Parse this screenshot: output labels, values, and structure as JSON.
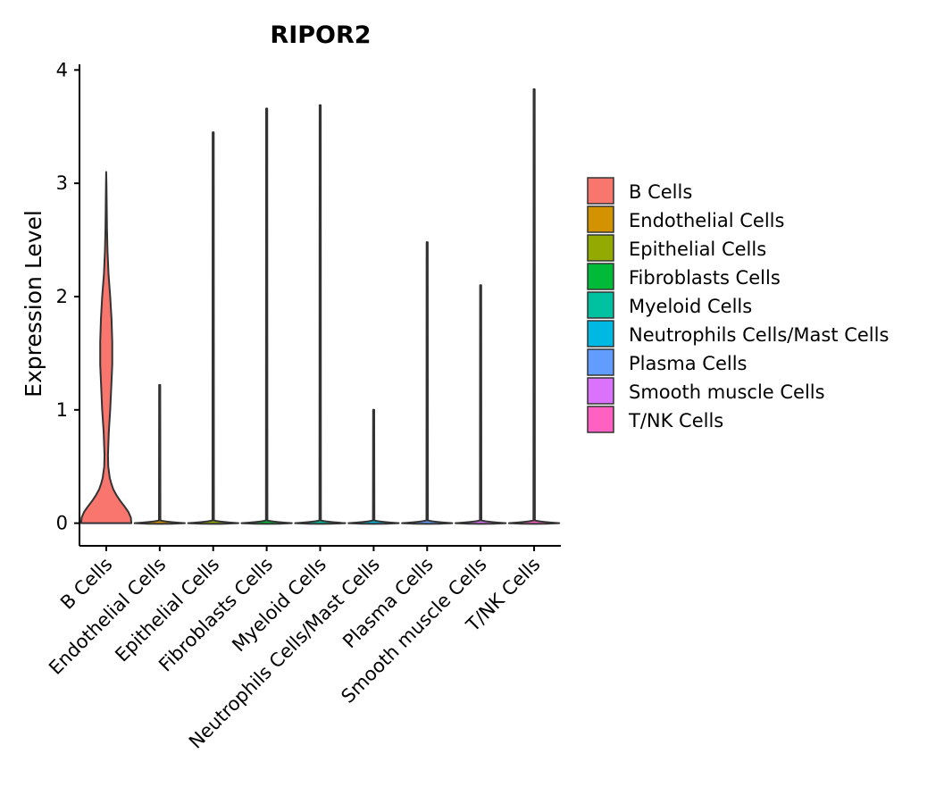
{
  "chart_data": {
    "type": "violin",
    "title": "RIPOR2",
    "xlabel": "",
    "ylabel": "Expression Level",
    "ylim": [
      -0.2,
      4.05
    ],
    "yticks": [
      0,
      1,
      2,
      3,
      4
    ],
    "categories": [
      "B Cells",
      "Endothelial Cells",
      "Epithelial Cells",
      "Fibroblasts Cells",
      "Myeloid Cells",
      "Neutrophils Cells/Mast Cells",
      "Plasma Cells",
      "Smooth muscle Cells",
      "T/NK Cells"
    ],
    "colors": [
      "#F8766D",
      "#D39200",
      "#93AA00",
      "#00BA38",
      "#00C19F",
      "#00B9E3",
      "#619CFF",
      "#DB72FB",
      "#FF61C3"
    ],
    "max_values": [
      3.1,
      1.22,
      3.45,
      3.66,
      3.69,
      1.0,
      2.48,
      2.1,
      3.83
    ],
    "b_cells_density_profile": {
      "y": [
        0.0,
        0.05,
        0.1,
        0.15,
        0.2,
        0.25,
        0.3,
        0.35,
        0.4,
        0.5,
        0.6,
        0.8,
        1.0,
        1.2,
        1.4,
        1.6,
        1.8,
        2.0,
        2.2,
        2.4,
        2.6,
        2.8,
        3.0,
        3.1
      ],
      "halfwidth": [
        1.0,
        0.98,
        0.88,
        0.72,
        0.55,
        0.4,
        0.28,
        0.2,
        0.14,
        0.08,
        0.07,
        0.1,
        0.16,
        0.2,
        0.24,
        0.24,
        0.21,
        0.16,
        0.09,
        0.05,
        0.03,
        0.02,
        0.01,
        0.0
      ]
    },
    "legend": {
      "position": "right",
      "entries": [
        "B Cells",
        "Endothelial Cells",
        "Epithelial Cells",
        "Fibroblasts Cells",
        "Myeloid Cells",
        "Neutrophils Cells/Mast Cells",
        "Plasma Cells",
        "Smooth muscle Cells",
        "T/NK Cells"
      ]
    }
  }
}
